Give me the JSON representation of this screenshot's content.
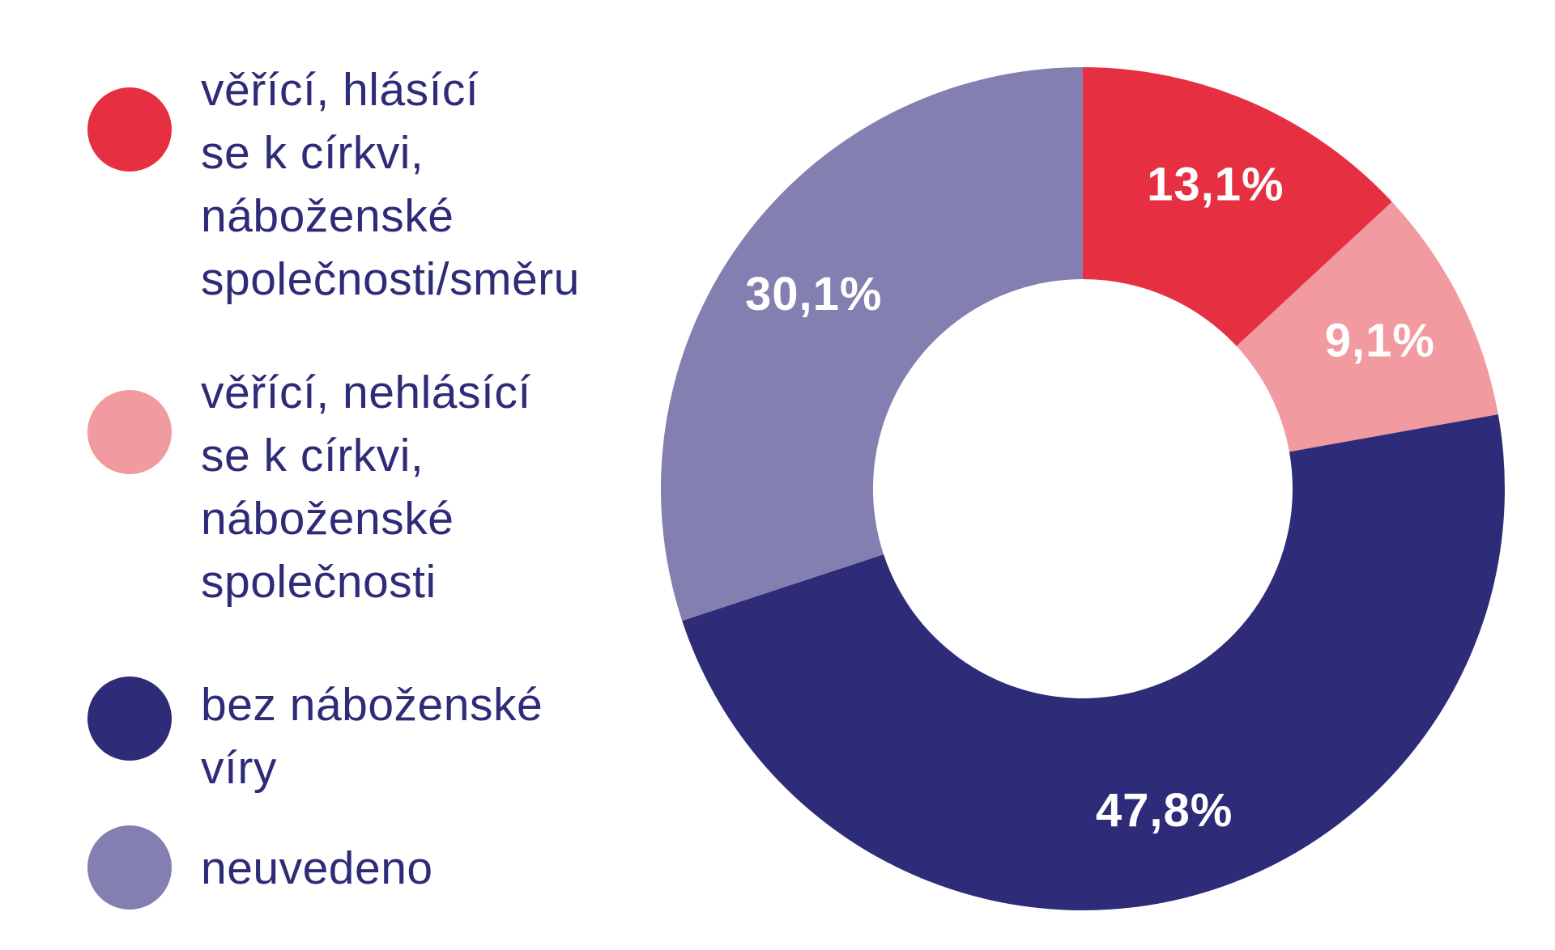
{
  "chart_data": {
    "type": "pie",
    "donut": true,
    "legend_position": "left",
    "slices": [
      {
        "label": "věřící, hlásící\nse k církvi,\nnáboženské\nspolečnosti/směru",
        "value": 13.1,
        "value_label": "13,1%",
        "color": "#e63042"
      },
      {
        "label": "věřící, nehlásící\nse k církvi,\nnáboženské\nspolečnosti",
        "value": 9.1,
        "value_label": "9,1%",
        "color": "#f19a9f"
      },
      {
        "label": "bez náboženské\nvíry",
        "value": 47.8,
        "value_label": "47,8%",
        "color": "#2e2b78"
      },
      {
        "label": "neuvedeno",
        "value": 30.1,
        "value_label": "30,1%",
        "color": "#8380b1"
      }
    ]
  }
}
